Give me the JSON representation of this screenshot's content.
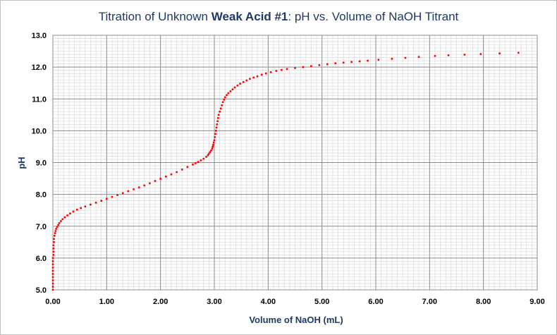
{
  "chart_data": {
    "type": "scatter",
    "title_parts": [
      {
        "text": "Titration of Unknown ",
        "bold": false
      },
      {
        "text": "Weak Acid #1",
        "bold": true
      },
      {
        "text": ": pH vs. Volume of NaOH Titrant",
        "bold": false
      }
    ],
    "xlabel": "Volume of NaOH (mL)",
    "ylabel": "pH",
    "xlim": [
      0,
      9
    ],
    "ylim": [
      5,
      13
    ],
    "x_ticks": [
      "0.00",
      "1.00",
      "2.00",
      "3.00",
      "4.00",
      "5.00",
      "6.00",
      "7.00",
      "8.00",
      "9.00"
    ],
    "y_ticks": [
      "5.0",
      "6.0",
      "7.0",
      "8.0",
      "9.0",
      "10.0",
      "11.0",
      "12.0",
      "13.0"
    ],
    "grid": true,
    "minor_grid": true,
    "legend": "none",
    "colors": {
      "marker": "#ff0000",
      "title": "#1f3864",
      "major_grid": "#8c8c8c",
      "minor_grid": "#d9d9d9"
    },
    "series": [
      {
        "x": [
          0.0,
          0.0,
          0.0,
          0.0,
          0.0,
          0.0,
          0.0,
          0.0,
          0.0,
          0.0,
          0.0,
          0.01,
          0.01,
          0.01,
          0.01,
          0.02,
          0.02,
          0.03,
          0.04,
          0.05,
          0.06,
          0.08,
          0.1,
          0.12,
          0.15,
          0.18,
          0.22,
          0.27,
          0.32,
          0.38,
          0.45,
          0.52,
          0.6,
          0.7,
          0.8,
          0.9,
          1.0,
          1.1,
          1.2,
          1.3,
          1.4,
          1.5,
          1.6,
          1.7,
          1.8,
          1.9,
          2.0,
          2.1,
          2.2,
          2.3,
          2.4,
          2.5,
          2.6,
          2.65,
          2.7,
          2.75,
          2.8,
          2.85,
          2.88,
          2.9,
          2.92,
          2.94,
          2.96,
          2.97,
          2.98,
          2.99,
          3.0,
          3.01,
          3.02,
          3.03,
          3.04,
          3.05,
          3.06,
          3.07,
          3.08,
          3.1,
          3.12,
          3.14,
          3.16,
          3.18,
          3.2,
          3.23,
          3.26,
          3.3,
          3.34,
          3.38,
          3.43,
          3.48,
          3.54,
          3.6,
          3.66,
          3.73,
          3.8,
          3.88,
          3.96,
          4.05,
          4.15,
          4.25,
          4.35,
          4.5,
          4.65,
          4.8,
          4.95,
          5.1,
          5.25,
          5.4,
          5.55,
          5.7,
          5.85,
          6.05,
          6.3,
          6.55,
          6.8,
          7.1,
          7.35,
          7.65,
          7.95,
          8.3,
          8.65
        ],
        "y": [
          5.0,
          5.1,
          5.2,
          5.3,
          5.4,
          5.5,
          5.6,
          5.7,
          5.8,
          5.9,
          6.0,
          6.1,
          6.2,
          6.3,
          6.4,
          6.5,
          6.6,
          6.7,
          6.78,
          6.85,
          6.92,
          6.98,
          7.04,
          7.1,
          7.16,
          7.22,
          7.28,
          7.34,
          7.4,
          7.46,
          7.52,
          7.57,
          7.62,
          7.68,
          7.74,
          7.8,
          7.86,
          7.92,
          7.98,
          8.04,
          8.1,
          8.16,
          8.22,
          8.28,
          8.35,
          8.42,
          8.49,
          8.56,
          8.63,
          8.7,
          8.78,
          8.86,
          8.94,
          8.98,
          9.02,
          9.07,
          9.12,
          9.18,
          9.23,
          9.28,
          9.33,
          9.38,
          9.44,
          9.5,
          9.56,
          9.63,
          9.7,
          9.8,
          9.9,
          10.0,
          10.1,
          10.2,
          10.3,
          10.4,
          10.5,
          10.6,
          10.7,
          10.8,
          10.9,
          10.98,
          11.05,
          11.12,
          11.18,
          11.24,
          11.3,
          11.36,
          11.42,
          11.48,
          11.53,
          11.58,
          11.63,
          11.67,
          11.71,
          11.76,
          11.8,
          11.84,
          11.88,
          11.91,
          11.94,
          11.97,
          12.0,
          12.03,
          12.06,
          12.09,
          12.12,
          12.14,
          12.16,
          12.18,
          12.2,
          12.23,
          12.26,
          12.29,
          12.32,
          12.35,
          12.37,
          12.39,
          12.41,
          12.43,
          12.45
        ]
      }
    ]
  }
}
